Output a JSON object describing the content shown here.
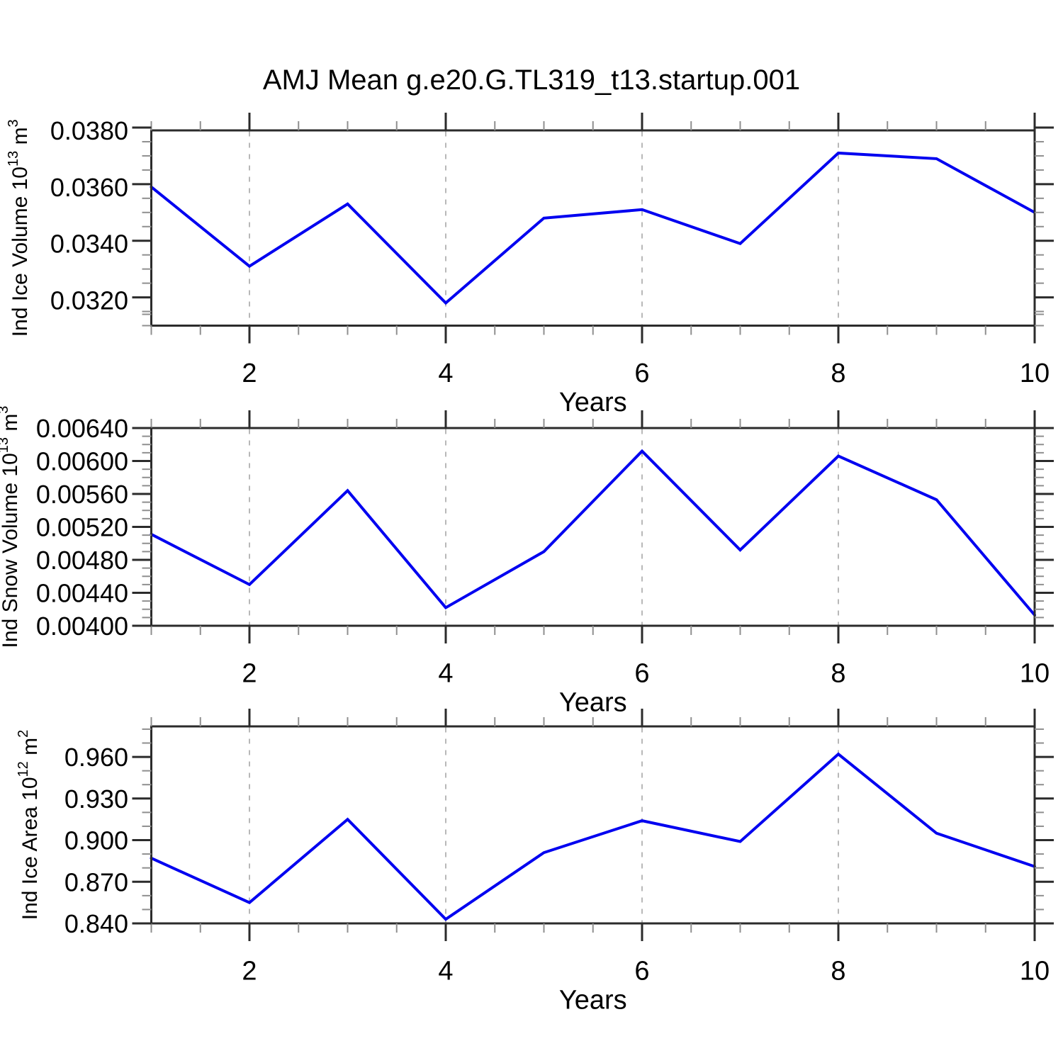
{
  "title": "AMJ Mean g.e20.G.TL319_t13.startup.001",
  "style": {
    "line_color": "#0000f0",
    "frame_color": "#2b2b2b",
    "major_tick_color": "#2b2b2b",
    "minor_tick_color": "#8f8f8f",
    "grid_color": "#b8b8b8",
    "background": "#ffffff"
  },
  "chart_data": [
    {
      "type": "line",
      "title": "",
      "ylabel": "Ind Ice Volume 10^13 m^3",
      "ylabel_parts": {
        "pre": "Ind Ice Volume 10",
        "sup1": "13",
        "mid": " m",
        "sup2": "3"
      },
      "xlabel": "Years",
      "x": [
        1,
        2,
        3,
        4,
        5,
        6,
        7,
        8,
        9,
        10
      ],
      "values": [
        0.036,
        0.0332,
        0.0354,
        0.0319,
        0.0349,
        0.0352,
        0.034,
        0.0372,
        0.037,
        0.0351
      ],
      "xlim": [
        1,
        10
      ],
      "ylim": [
        0.0311,
        0.038
      ],
      "y_major_ticks": [
        0.032,
        0.034,
        0.036,
        0.038
      ],
      "y_tick_labels": [
        "0.0320",
        "0.0340",
        "0.0360",
        "0.0380"
      ],
      "y_minor_step": 0.0005,
      "x_major_ticks": [
        2,
        4,
        6,
        8,
        10
      ],
      "x_tick_labels": [
        "2",
        "4",
        "6",
        "8",
        "10"
      ],
      "x_minor_step": 0.5,
      "grid_x": [
        2,
        4,
        6,
        8
      ],
      "grid": "vertical-dashed",
      "legend": "none"
    },
    {
      "type": "line",
      "title": "",
      "ylabel": "Ind Snow Volume 10^13 m^3",
      "ylabel_parts": {
        "pre": "Ind Snow Volume 10",
        "sup1": "13",
        "mid": " m",
        "sup2": "3"
      },
      "xlabel": "Years",
      "x": [
        1,
        2,
        3,
        4,
        5,
        6,
        7,
        8,
        9,
        10
      ],
      "values": [
        0.00511,
        0.0045,
        0.00564,
        0.00422,
        0.0049,
        0.00612,
        0.00492,
        0.00606,
        0.00553,
        0.00413
      ],
      "xlim": [
        1,
        10
      ],
      "ylim": [
        0.004,
        0.0064
      ],
      "y_major_ticks": [
        0.004,
        0.0044,
        0.0048,
        0.0052,
        0.0056,
        0.006,
        0.0064
      ],
      "y_tick_labels": [
        "0.00400",
        "0.00440",
        "0.00480",
        "0.00520",
        "0.00560",
        "0.00600",
        "0.00640"
      ],
      "y_minor_step": 0.0001,
      "x_major_ticks": [
        2,
        4,
        6,
        8,
        10
      ],
      "x_tick_labels": [
        "2",
        "4",
        "6",
        "8",
        "10"
      ],
      "x_minor_step": 0.5,
      "grid_x": [
        2,
        4,
        6,
        8
      ],
      "grid": "vertical-dashed",
      "legend": "none"
    },
    {
      "type": "line",
      "title": "",
      "ylabel": "Ind Ice Area 10^12 m^2",
      "ylabel_parts": {
        "pre": "Ind Ice Area 10",
        "sup1": "12",
        "mid": " m",
        "sup2": "2"
      },
      "xlabel": "Years",
      "x": [
        1,
        2,
        3,
        4,
        5,
        6,
        7,
        8,
        9,
        10
      ],
      "values": [
        0.887,
        0.855,
        0.915,
        0.843,
        0.891,
        0.914,
        0.899,
        0.962,
        0.905,
        0.881
      ],
      "xlim": [
        1,
        10
      ],
      "ylim": [
        0.84,
        0.982
      ],
      "y_major_ticks": [
        0.84,
        0.87,
        0.9,
        0.93,
        0.96
      ],
      "y_tick_labels": [
        "0.840",
        "0.870",
        "0.900",
        "0.930",
        "0.960"
      ],
      "y_minor_step": 0.01,
      "x_major_ticks": [
        2,
        4,
        6,
        8,
        10
      ],
      "x_tick_labels": [
        "2",
        "4",
        "6",
        "8",
        "10"
      ],
      "x_minor_step": 0.5,
      "grid_x": [
        2,
        4,
        6,
        8
      ],
      "grid": "vertical-dashed",
      "legend": "none"
    }
  ]
}
